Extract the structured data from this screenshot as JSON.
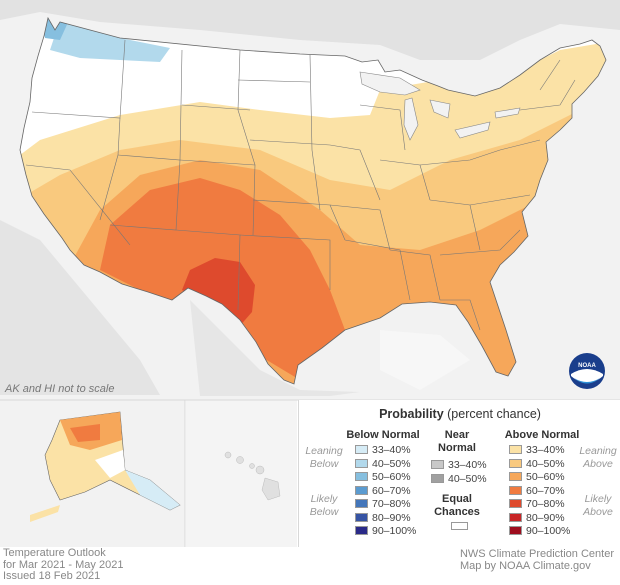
{
  "map": {
    "scale_note": "AK and HI not to scale"
  },
  "footer": {
    "left": [
      "Temperature Outlook",
      "for Mar 2021 - May 2021",
      "Issued 18 Feb 2021"
    ],
    "right": [
      "NWS Climate Prediction Center",
      "Map by NOAA Climate.gov"
    ]
  },
  "logo": {
    "text": "NOAA",
    "icon": "noaa-logo"
  },
  "legend": {
    "title_bold": "Probability",
    "title_rest": " (percent chance)",
    "below": {
      "heading": "Below Normal",
      "leaning_label": [
        "Leaning",
        "Below"
      ],
      "likely_label": [
        "Likely",
        "Below"
      ],
      "items": [
        {
          "label": "33–40%",
          "color": "#d6ecf6"
        },
        {
          "label": "40–50%",
          "color": "#b2d9ec"
        },
        {
          "label": "50–60%",
          "color": "#86bfdf"
        },
        {
          "label": "60–70%",
          "color": "#5b9bd0"
        },
        {
          "label": "70–80%",
          "color": "#4476ba"
        },
        {
          "label": "80–90%",
          "color": "#3654a4"
        },
        {
          "label": "90–100%",
          "color": "#2a2a88"
        }
      ]
    },
    "near": {
      "heading": [
        "Near",
        "Normal"
      ],
      "items": [
        {
          "label": "33–40%",
          "color": "#c8c8c8"
        },
        {
          "label": "40–50%",
          "color": "#a0a0a0"
        }
      ],
      "equal_label": [
        "Equal",
        "Chances"
      ],
      "equal_color": "#ffffff"
    },
    "above": {
      "heading": "Above Normal",
      "leaning_label": [
        "Leaning",
        "Above"
      ],
      "likely_label": [
        "Likely",
        "Above"
      ],
      "items": [
        {
          "label": "33–40%",
          "color": "#fbe2a6"
        },
        {
          "label": "40–50%",
          "color": "#f9c97e"
        },
        {
          "label": "50–60%",
          "color": "#f6a75a"
        },
        {
          "label": "60–70%",
          "color": "#f07b40"
        },
        {
          "label": "70–80%",
          "color": "#de4a2d"
        },
        {
          "label": "80–90%",
          "color": "#c82426"
        },
        {
          "label": "90–100%",
          "color": "#9e0d1e"
        }
      ]
    }
  }
}
